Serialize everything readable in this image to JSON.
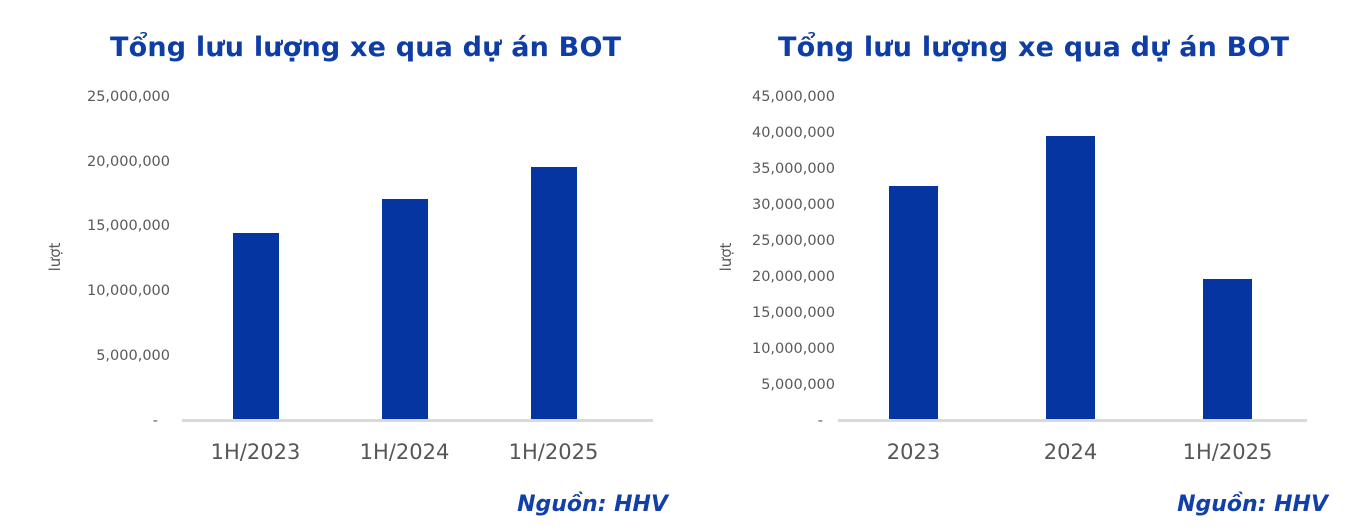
{
  "chart_data": [
    {
      "type": "bar",
      "title": "Tổng lưu lượng xe qua dự án BOT",
      "ylabel": "lượt",
      "xlabel": "",
      "source": "Nguồn: HHV",
      "categories": [
        "1H/2023",
        "1H/2024",
        "1H/2025"
      ],
      "values": [
        14400000,
        17000000,
        19500000
      ],
      "ylim": [
        0,
        25000000
      ],
      "ytick_step": 5000000,
      "ytick_labels": [
        "25,000,000",
        "20,000,000",
        "15,000,000",
        "10,000,000",
        "5,000,000",
        "-"
      ],
      "grid": false,
      "legend": false
    },
    {
      "type": "bar",
      "title": "Tổng lưu lượng xe qua dự án BOT",
      "ylabel": "lượt",
      "xlabel": "",
      "source": "Nguồn: HHV",
      "categories": [
        "2023",
        "2024",
        "1H/2025"
      ],
      "values": [
        32400000,
        39400000,
        19500000
      ],
      "ylim": [
        0,
        45000000
      ],
      "ytick_step": 5000000,
      "ytick_labels": [
        "45,000,000",
        "40,000,000",
        "35,000,000",
        "30,000,000",
        "25,000,000",
        "20,000,000",
        "15,000,000",
        "10,000,000",
        "5,000,000",
        "-"
      ],
      "grid": false,
      "legend": false
    }
  ],
  "colors": {
    "title": "#0D3DA5",
    "bar": "#0435A0",
    "axis_line": "#D9D9D9",
    "tick_text": "#595959",
    "category_text": "#565656",
    "source_text": "#1141A8",
    "background": "#FFFFFF"
  }
}
